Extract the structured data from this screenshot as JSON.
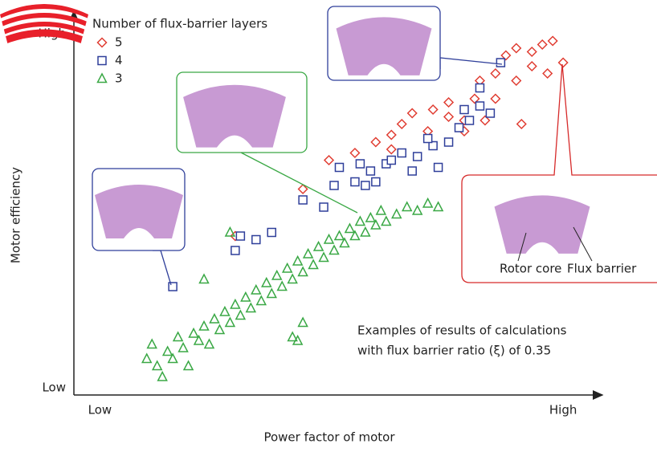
{
  "chart_data": {
    "type": "scatter",
    "x_label": "Power factor of motor",
    "y_label": "Motor efficiency",
    "legend_title": "Number of flux-barrier layers",
    "annotation": [
      "Examples of results of calculations",
      "with flux barrier ratio (ξ) of 0.35"
    ],
    "rotor_labels": [
      "Rotor core",
      "Flux barrier"
    ],
    "xlim": [
      0,
      100
    ],
    "ylim": [
      0,
      100
    ],
    "xticks": [
      {
        "value": 5,
        "label": "Low"
      },
      {
        "value": 94,
        "label": "High"
      }
    ],
    "yticks": [
      {
        "value": 2,
        "label": "Low"
      },
      {
        "value": 100,
        "label": "High"
      }
    ],
    "series": [
      {
        "name": "5",
        "color": "#e03c31",
        "marker": "diamond",
        "x": [
          31,
          44,
          49,
          54,
          61,
          63,
          65,
          68,
          69,
          72,
          75,
          77,
          78,
          81,
          83,
          85,
          88,
          90,
          92,
          94,
          91,
          86,
          81,
          79,
          75,
          72,
          61,
          58,
          85,
          88
        ],
        "y": [
          44,
          57,
          65,
          67,
          72,
          75,
          78,
          73,
          79,
          81,
          76,
          82,
          87,
          89,
          94,
          96,
          95,
          97,
          98,
          92,
          89,
          75,
          82,
          76,
          73,
          77,
          68,
          70,
          87,
          91
        ]
      },
      {
        "name": "4",
        "color": "#2f3f9a",
        "marker": "square",
        "x": [
          19,
          31,
          32,
          35,
          38,
          44,
          48,
          50,
          51,
          54,
          57,
          60,
          61,
          63,
          66,
          70,
          72,
          69,
          74,
          76,
          78,
          80,
          82,
          78,
          75,
          68,
          65,
          58,
          55,
          56
        ],
        "y": [
          30,
          40,
          44,
          43,
          45,
          54,
          52,
          58,
          63,
          59,
          62,
          64,
          65,
          67,
          66,
          63,
          70,
          69,
          74,
          76,
          85,
          78,
          92,
          80,
          79,
          71,
          62,
          59,
          64,
          58
        ]
      },
      {
        "name": "3",
        "color": "#3aa845",
        "marker": "triangle",
        "x": [
          14,
          15,
          16,
          17,
          18,
          19,
          20,
          21,
          22,
          23,
          24,
          25,
          26,
          27,
          28,
          29,
          30,
          31,
          32,
          33,
          34,
          35,
          36,
          37,
          38,
          39,
          40,
          41,
          42,
          43,
          44,
          45,
          46,
          47,
          48,
          49,
          50,
          51,
          52,
          53,
          54,
          55,
          56,
          57,
          58,
          59,
          60,
          62,
          64,
          66,
          68,
          70,
          44,
          42,
          25,
          30,
          43
        ],
        "y": [
          10,
          14,
          8,
          5,
          12,
          10,
          16,
          13,
          8,
          17,
          15,
          19,
          14,
          21,
          18,
          23,
          20,
          25,
          22,
          27,
          24,
          29,
          26,
          31,
          28,
          33,
          30,
          35,
          32,
          37,
          34,
          39,
          36,
          41,
          38,
          43,
          40,
          44,
          42,
          46,
          44,
          48,
          45,
          49,
          47,
          51,
          48,
          50,
          52,
          51,
          53,
          52,
          20,
          16,
          32,
          45,
          15
        ]
      }
    ]
  }
}
